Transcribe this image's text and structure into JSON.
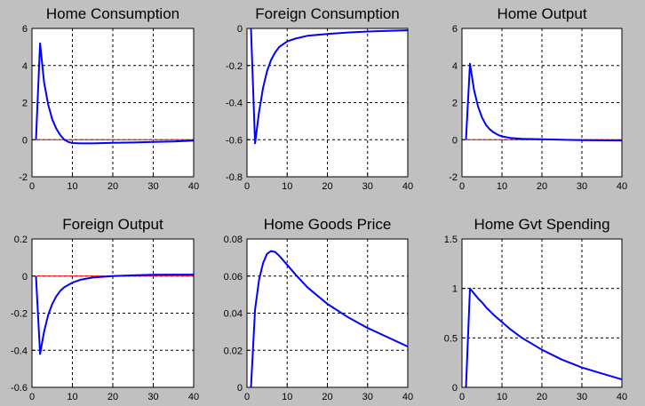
{
  "chart_data": [
    {
      "type": "line",
      "title": "Home Consumption",
      "xlim": [
        0,
        40
      ],
      "ylim": [
        -2,
        6
      ],
      "xticks": [
        0,
        10,
        20,
        30,
        40
      ],
      "yticks": [
        -2,
        0,
        2,
        4,
        6
      ],
      "grid": true,
      "colors": {
        "response": "#0000ff",
        "zero": "#ff0000"
      },
      "x": [
        1,
        2,
        3,
        4,
        5,
        6,
        7,
        8,
        9,
        10,
        12,
        15,
        20,
        25,
        30,
        35,
        40
      ],
      "response": [
        0,
        5.2,
        3.1,
        1.9,
        1.1,
        0.6,
        0.25,
        0.0,
        -0.12,
        -0.18,
        -0.2,
        -0.2,
        -0.17,
        -0.15,
        -0.12,
        -0.1,
        -0.05
      ],
      "zero_x": [
        1,
        40
      ],
      "zero_y": [
        0,
        0
      ]
    },
    {
      "type": "line",
      "title": "Foreign Consumption",
      "xlim": [
        0,
        40
      ],
      "ylim": [
        -0.8,
        0
      ],
      "xticks": [
        0,
        10,
        20,
        30,
        40
      ],
      "yticks": [
        -0.8,
        -0.6,
        -0.4,
        -0.2,
        0
      ],
      "grid": true,
      "colors": {
        "response": "#0000ff",
        "zero": "#ff0000"
      },
      "x": [
        1,
        2,
        3,
        4,
        5,
        6,
        7,
        8,
        10,
        12,
        15,
        20,
        25,
        30,
        35,
        40
      ],
      "response": [
        0,
        -0.62,
        -0.45,
        -0.32,
        -0.23,
        -0.17,
        -0.13,
        -0.1,
        -0.07,
        -0.055,
        -0.04,
        -0.03,
        -0.022,
        -0.017,
        -0.013,
        -0.01
      ],
      "zero_x": [
        1,
        40
      ],
      "zero_y": [
        0,
        0
      ]
    },
    {
      "type": "line",
      "title": "Home Output",
      "xlim": [
        0,
        40
      ],
      "ylim": [
        -2,
        6
      ],
      "xticks": [
        0,
        10,
        20,
        30,
        40
      ],
      "yticks": [
        -2,
        0,
        2,
        4,
        6
      ],
      "grid": true,
      "colors": {
        "response": "#0000ff",
        "zero": "#ff0000"
      },
      "x": [
        1,
        2,
        3,
        4,
        5,
        6,
        7,
        8,
        9,
        10,
        12,
        15,
        20,
        25,
        30,
        40
      ],
      "response": [
        0,
        4.1,
        2.7,
        1.8,
        1.2,
        0.8,
        0.55,
        0.38,
        0.26,
        0.18,
        0.1,
        0.05,
        0.02,
        0.0,
        -0.02,
        -0.04
      ],
      "zero_x": [
        1,
        40
      ],
      "zero_y": [
        0,
        0
      ]
    },
    {
      "type": "line",
      "title": "Foreign Output",
      "xlim": [
        0,
        40
      ],
      "ylim": [
        -0.6,
        0.2
      ],
      "xticks": [
        0,
        10,
        20,
        30,
        40
      ],
      "yticks": [
        -0.6,
        -0.4,
        -0.2,
        0,
        0.2
      ],
      "grid": true,
      "colors": {
        "response": "#0000ff",
        "zero": "#ff0000"
      },
      "x": [
        1,
        2,
        3,
        4,
        5,
        6,
        7,
        8,
        10,
        12,
        15,
        20,
        25,
        30,
        35,
        40
      ],
      "response": [
        0,
        -0.42,
        -0.3,
        -0.21,
        -0.15,
        -0.11,
        -0.08,
        -0.06,
        -0.035,
        -0.02,
        -0.008,
        0.0,
        0.004,
        0.007,
        0.008,
        0.008
      ],
      "zero_x": [
        1,
        40
      ],
      "zero_y": [
        0,
        0
      ]
    },
    {
      "type": "line",
      "title": "Home Goods Price",
      "xlim": [
        0,
        40
      ],
      "ylim": [
        0,
        0.08
      ],
      "xticks": [
        0,
        10,
        20,
        30,
        40
      ],
      "yticks": [
        0,
        0.02,
        0.04,
        0.06,
        0.08
      ],
      "grid": true,
      "colors": {
        "response": "#0000ff",
        "zero": "#ff0000"
      },
      "x": [
        1,
        2,
        3,
        4,
        5,
        6,
        7,
        8,
        10,
        12,
        15,
        20,
        25,
        30,
        35,
        40
      ],
      "response": [
        0,
        0.042,
        0.058,
        0.067,
        0.072,
        0.0735,
        0.073,
        0.071,
        0.066,
        0.061,
        0.054,
        0.045,
        0.038,
        0.032,
        0.027,
        0.022
      ],
      "zero_x": [
        1,
        40
      ],
      "zero_y": [
        0,
        0
      ]
    },
    {
      "type": "line",
      "title": "Home Gvt Spending",
      "xlim": [
        0,
        40
      ],
      "ylim": [
        0,
        1.5
      ],
      "xticks": [
        0,
        10,
        20,
        30,
        40
      ],
      "yticks": [
        0,
        0.5,
        1,
        1.5
      ],
      "grid": true,
      "colors": {
        "response": "#0000ff",
        "zero": "#ff0000"
      },
      "x": [
        1,
        2,
        3,
        4,
        5,
        6,
        8,
        10,
        12,
        15,
        20,
        25,
        30,
        35,
        40
      ],
      "response": [
        0,
        1.0,
        0.95,
        0.9,
        0.86,
        0.81,
        0.73,
        0.66,
        0.59,
        0.5,
        0.38,
        0.28,
        0.2,
        0.14,
        0.08
      ],
      "zero_x": [
        1,
        40
      ],
      "zero_y": [
        0,
        0
      ]
    }
  ]
}
